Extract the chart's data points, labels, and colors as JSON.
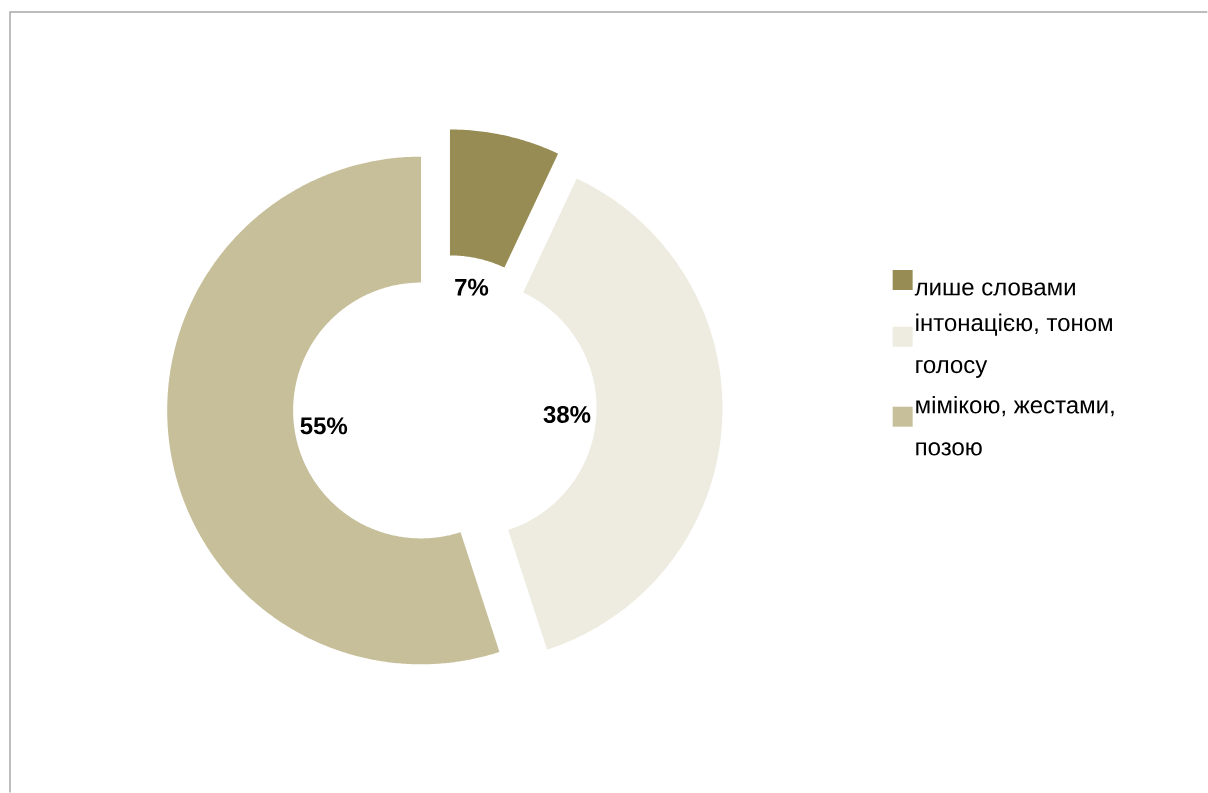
{
  "chart_data": {
    "type": "donut",
    "categories": [
      "лише словами",
      "інтонацією, тоном голосу",
      "мімікою, жестами, позою"
    ],
    "values": [
      7,
      38,
      55
    ],
    "colors": [
      "#968c54",
      "#eeebe0",
      "#c6bf9a"
    ],
    "value_labels": [
      "7%",
      "38%",
      "55%"
    ],
    "legend": "right"
  }
}
